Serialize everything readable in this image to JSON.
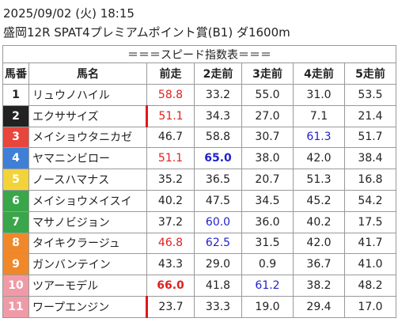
{
  "header": {
    "datetime": "2025/09/02 (火) 18:15",
    "race": "盛岡12R SPAT4プレミアムポイント賞(B1) ダ1600m"
  },
  "table": {
    "title": "＝＝＝スピード指数表＝＝＝",
    "columns": [
      "馬番",
      "馬名",
      "前走",
      "2走前",
      "3走前",
      "4走前",
      "5走前"
    ],
    "rows": [
      {
        "number": "1",
        "name": "リュウノハイル",
        "frame_color": "#ffffff",
        "values": [
          "58.8",
          "33.2",
          "55.0",
          "31.0",
          "53.5"
        ],
        "styles": [
          "red",
          "plain",
          "plain",
          "plain",
          "plain"
        ]
      },
      {
        "number": "2",
        "name": "エクササイズ",
        "frame_color": "#222222",
        "values": [
          "51.1",
          "34.3",
          "27.0",
          "7.1",
          "21.4"
        ],
        "styles": [
          "red bar",
          "plain",
          "plain",
          "plain",
          "plain"
        ]
      },
      {
        "number": "3",
        "name": "メイショウタニカゼ",
        "frame_color": "#e8453c",
        "values": [
          "46.7",
          "58.8",
          "30.7",
          "61.3",
          "51.7"
        ],
        "styles": [
          "plain",
          "plain",
          "plain",
          "blue",
          "plain"
        ]
      },
      {
        "number": "4",
        "name": "ヤマニンビロー",
        "frame_color": "#3f7fd6",
        "values": [
          "51.1",
          "65.0",
          "38.0",
          "42.0",
          "38.4"
        ],
        "styles": [
          "red",
          "blue bold",
          "plain",
          "plain",
          "plain"
        ]
      },
      {
        "number": "5",
        "name": "ノースハマナス",
        "frame_color": "#f2d43a",
        "values": [
          "35.2",
          "36.5",
          "20.7",
          "51.3",
          "16.8"
        ],
        "styles": [
          "plain",
          "plain",
          "plain",
          "plain",
          "plain"
        ]
      },
      {
        "number": "6",
        "name": "メイショウメイスイ",
        "frame_color": "#3aa64a",
        "values": [
          "40.2",
          "47.5",
          "34.5",
          "45.2",
          "54.2"
        ],
        "styles": [
          "plain",
          "plain",
          "plain",
          "plain",
          "plain"
        ]
      },
      {
        "number": "7",
        "name": "マサノビジョン",
        "frame_color": "#3aa64a",
        "values": [
          "37.2",
          "60.0",
          "36.0",
          "40.2",
          "17.5"
        ],
        "styles": [
          "plain",
          "blue",
          "plain",
          "plain",
          "plain"
        ]
      },
      {
        "number": "8",
        "name": "タイキクラージュ",
        "frame_color": "#f0882a",
        "values": [
          "46.8",
          "62.5",
          "31.5",
          "42.0",
          "41.7"
        ],
        "styles": [
          "red",
          "blue",
          "plain",
          "plain",
          "plain"
        ]
      },
      {
        "number": "9",
        "name": "ガンバンテイン",
        "frame_color": "#f0882a",
        "values": [
          "43.3",
          "29.0",
          "0.9",
          "36.7",
          "41.0"
        ],
        "styles": [
          "plain",
          "plain",
          "plain",
          "plain",
          "plain"
        ]
      },
      {
        "number": "10",
        "name": "ツアーモデル",
        "frame_color": "#f09aa8",
        "values": [
          "66.0",
          "41.8",
          "61.2",
          "38.2",
          "48.2"
        ],
        "styles": [
          "red bold",
          "plain",
          "blue",
          "plain",
          "plain"
        ]
      },
      {
        "number": "11",
        "name": "ワープエンジン",
        "frame_color": "#f09aa8",
        "values": [
          "23.7",
          "33.3",
          "19.0",
          "29.4",
          "17.0"
        ],
        "styles": [
          "bar",
          "plain",
          "plain",
          "plain",
          "plain"
        ]
      }
    ]
  }
}
